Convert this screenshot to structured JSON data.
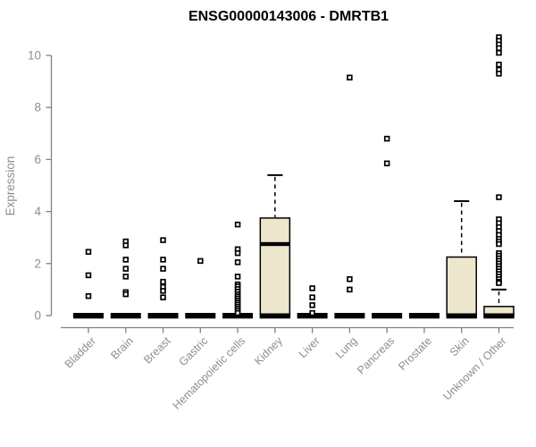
{
  "chart_data": {
    "type": "boxplot",
    "title": "ENSG00000143006 - DMRTB1",
    "ylabel": "Expression",
    "xlabel": "",
    "ylim": [
      0,
      10.9
    ],
    "yticks": [
      0,
      2,
      4,
      6,
      8,
      10
    ],
    "grid": false,
    "legend": "none",
    "colors": {
      "box_fill": "#EDE7CD",
      "box_stroke": "#000000",
      "axis_color": "#818181",
      "label_color": "#8E8E8E",
      "title_color": "#000000"
    },
    "categories": [
      {
        "name": "Bladder",
        "q1": 0,
        "median": 0,
        "q3": 0,
        "whisker_high": 0,
        "outliers": [
          2.45,
          1.55,
          0.75
        ]
      },
      {
        "name": "Brain",
        "q1": 0,
        "median": 0,
        "q3": 0,
        "whisker_high": 0,
        "outliers": [
          2.85,
          2.7,
          2.15,
          1.8,
          1.5,
          0.9,
          0.82
        ]
      },
      {
        "name": "Breast",
        "q1": 0,
        "median": 0,
        "q3": 0,
        "whisker_high": 0,
        "outliers": [
          2.9,
          2.15,
          1.8,
          1.3,
          1.1,
          0.95,
          0.7
        ]
      },
      {
        "name": "Gastric",
        "q1": 0,
        "median": 0,
        "q3": 0,
        "whisker_high": 0,
        "outliers": [
          2.1
        ]
      },
      {
        "name": "Hematopoietic cells",
        "q1": 0,
        "median": 0,
        "q3": 0,
        "whisker_high": 0,
        "outliers": [
          3.5,
          2.55,
          2.4,
          2.05,
          1.5,
          1.2,
          1.12,
          1.02,
          0.92,
          0.82,
          0.74,
          0.66,
          0.58,
          0.5,
          0.42,
          0.34,
          0.26,
          0.18,
          0.1
        ]
      },
      {
        "name": "Kidney",
        "q1": 0,
        "median": 2.75,
        "q3": 3.75,
        "whisker_high": 5.4,
        "outliers": []
      },
      {
        "name": "Liver",
        "q1": 0,
        "median": 0,
        "q3": 0,
        "whisker_high": 0,
        "outliers": [
          1.05,
          0.7,
          0.4,
          0.1
        ]
      },
      {
        "name": "Lung",
        "q1": 0,
        "median": 0,
        "q3": 0,
        "whisker_high": 0,
        "outliers": [
          9.15,
          1.4,
          1.0
        ]
      },
      {
        "name": "Pancreas",
        "q1": 0,
        "median": 0,
        "q3": 0,
        "whisker_high": 0,
        "outliers": [
          6.8,
          5.85
        ]
      },
      {
        "name": "Prostate",
        "q1": 0,
        "median": 0,
        "q3": 0,
        "whisker_high": 0,
        "outliers": []
      },
      {
        "name": "Skin",
        "q1": 0,
        "median": 0,
        "q3": 2.25,
        "whisker_high": 4.4,
        "outliers": []
      },
      {
        "name": "Unknown / Other",
        "q1": 0,
        "median": 0,
        "q3": 0.35,
        "whisker_high": 1.0,
        "outliers": [
          10.7,
          10.56,
          10.42,
          10.28,
          10.1,
          9.65,
          9.45,
          9.3,
          4.55,
          3.7,
          3.55,
          3.4,
          3.25,
          3.1,
          2.95,
          2.85,
          2.75,
          2.4,
          2.3,
          2.2,
          2.1,
          2.0,
          1.9,
          1.8,
          1.7,
          1.6,
          1.5,
          1.4,
          1.3,
          1.25
        ]
      }
    ]
  }
}
